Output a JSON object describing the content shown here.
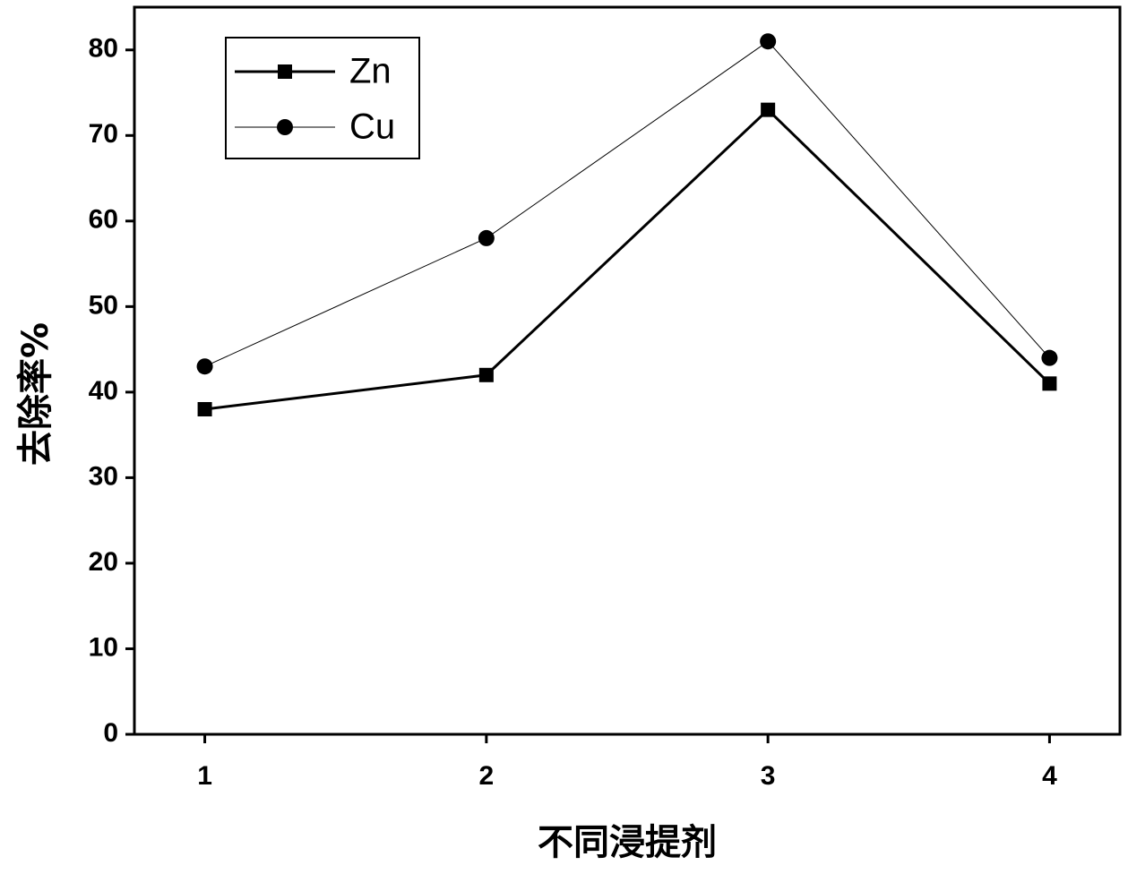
{
  "chart_data": {
    "type": "line",
    "x_label": "不同浸提剂",
    "y_label": "去除率%",
    "x": [
      1,
      2,
      3,
      4
    ],
    "series": [
      {
        "name": "Zn",
        "color": "#000000",
        "marker": "square",
        "linewidth": 3,
        "values": [
          38,
          42,
          73,
          41
        ]
      },
      {
        "name": "Cu",
        "color": "#000000",
        "marker": "circle",
        "linewidth": 1,
        "values": [
          43,
          58,
          81,
          44
        ]
      }
    ],
    "xlim": [
      0.75,
      4.25
    ],
    "xticks": [
      1,
      2,
      3,
      4
    ],
    "ylim": [
      0,
      85
    ],
    "yticks": [
      0,
      10,
      20,
      30,
      40,
      50,
      60,
      70,
      80
    ],
    "legend": "upper left",
    "grid": false
  }
}
